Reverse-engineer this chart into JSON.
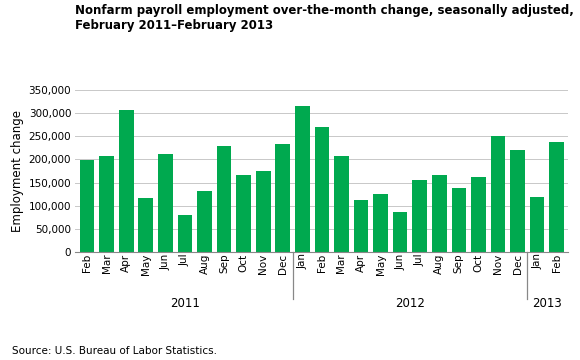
{
  "title_line1": "Nonfarm payroll employment over-the-month change, seasonally adjusted,",
  "title_line2": "February 2011–February 2013",
  "ylabel": "Employment change",
  "source": "Source: U.S. Bureau of Labor Statistics.",
  "bar_color": "#00A94F",
  "background_color": "#FFFFFF",
  "gridline_color": "#C8C8C8",
  "ylim": [
    0,
    350000
  ],
  "yticks": [
    0,
    50000,
    100000,
    150000,
    200000,
    250000,
    300000,
    350000
  ],
  "categories": [
    "Feb",
    "Mar",
    "Apr",
    "May",
    "Jun",
    "Jul",
    "Aug",
    "Sep",
    "Oct",
    "Nov",
    "Dec",
    "Jan",
    "Feb",
    "Mar",
    "Apr",
    "May",
    "Jun",
    "Jul",
    "Aug",
    "Sep",
    "Oct",
    "Nov",
    "Dec",
    "Jan",
    "Feb"
  ],
  "values": [
    199000,
    208000,
    307000,
    117000,
    211000,
    79000,
    132000,
    228000,
    166000,
    175000,
    233000,
    315000,
    271000,
    208000,
    113000,
    126000,
    87000,
    155000,
    166000,
    139000,
    163000,
    250000,
    220000,
    119000,
    238000
  ],
  "year_labels": [
    "2011",
    "2012",
    "2013"
  ],
  "year_centers": [
    5.0,
    16.5,
    23.5
  ],
  "year_dividers": [
    10.5,
    22.5
  ],
  "bar_width": 0.75
}
